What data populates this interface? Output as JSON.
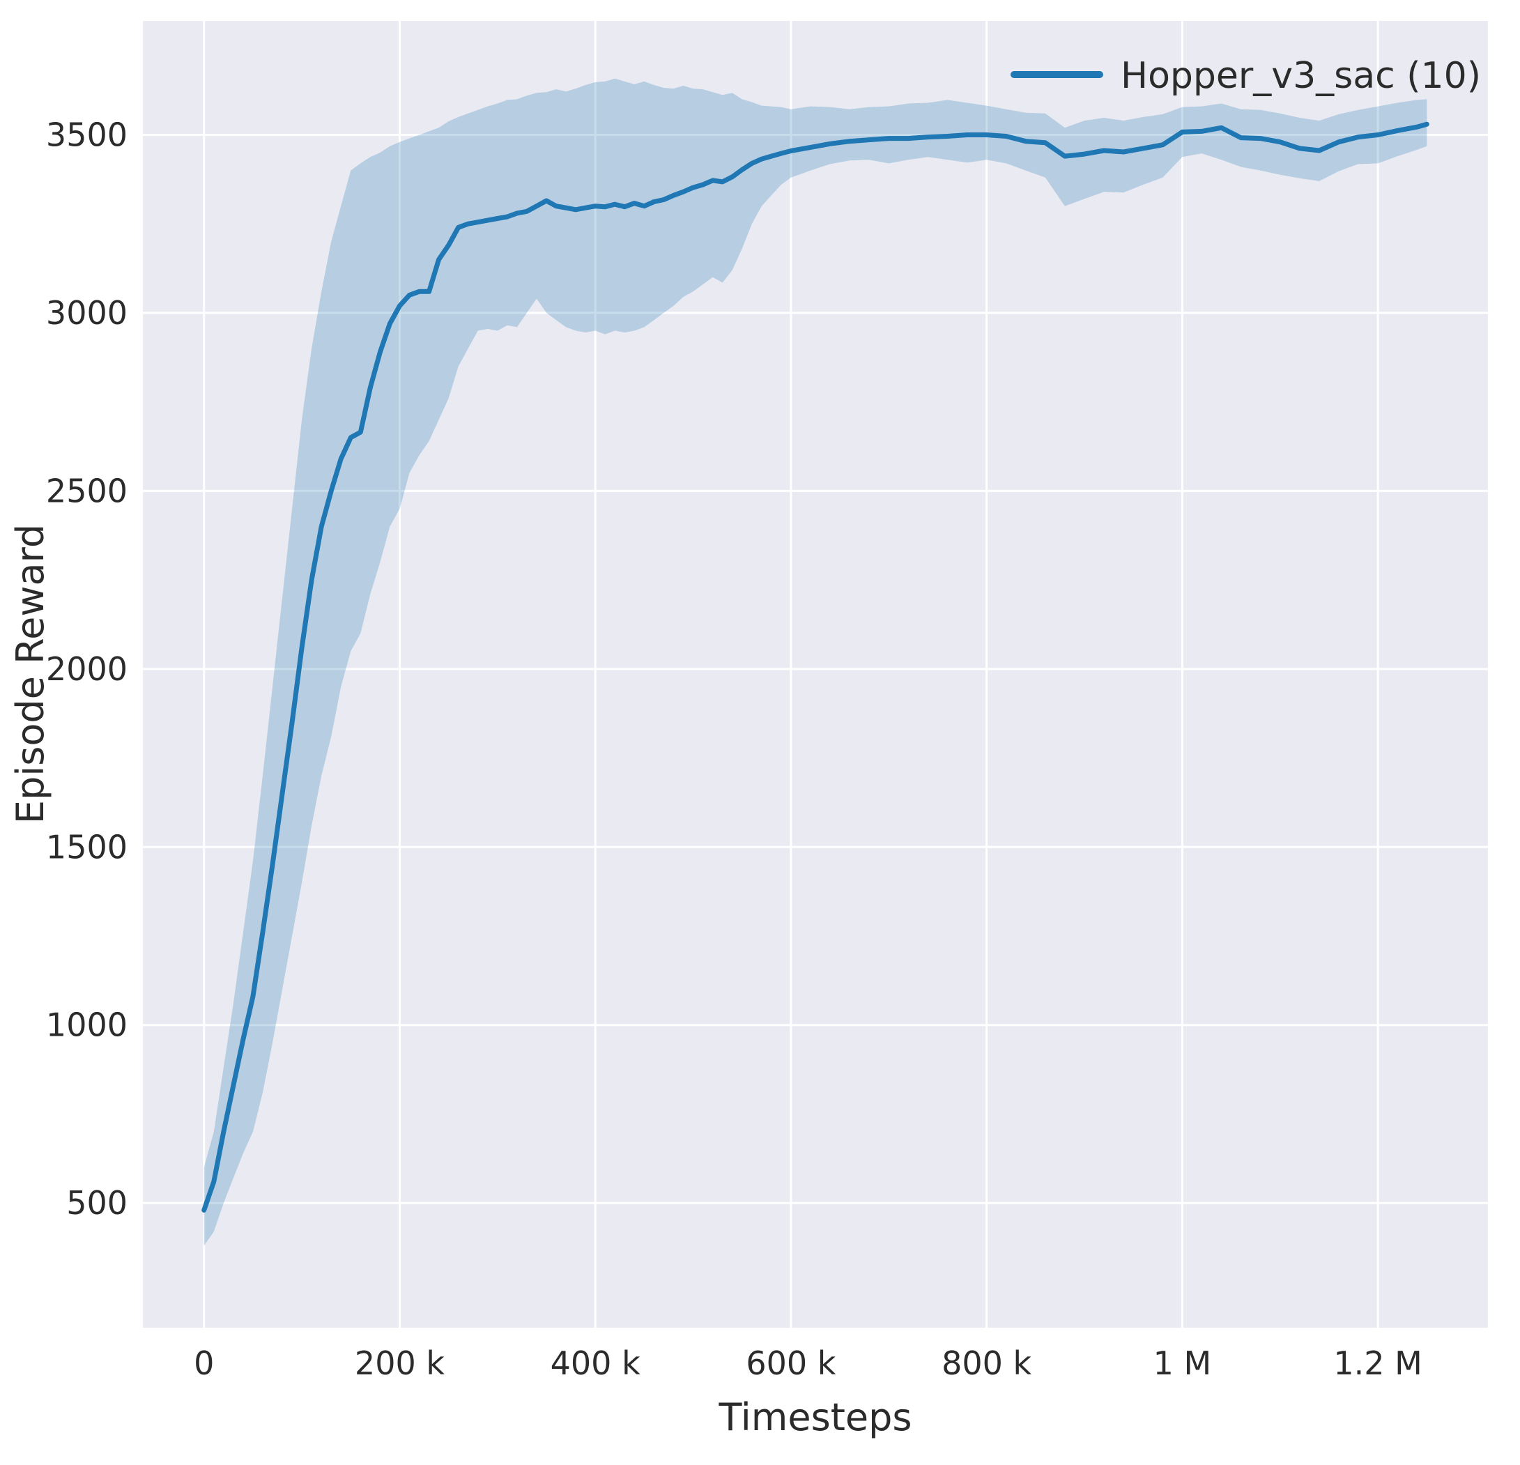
{
  "chart_data": {
    "type": "line",
    "title": "",
    "xlabel": "Timesteps",
    "ylabel": "Episode Reward",
    "x_unit": "timesteps (values stored in thousands)",
    "legend": [
      {
        "label": "Hopper_v3_sac (10)",
        "color": "#1f77b4"
      }
    ],
    "legend_position": "upper right",
    "grid": true,
    "xlim": [
      -62.5,
      1312.5
    ],
    "ylim": [
      150,
      3820
    ],
    "x_ticks": {
      "values": [
        0,
        200,
        400,
        600,
        800,
        1000,
        1200
      ],
      "labels": [
        "0",
        "200 k",
        "400 k",
        "600 k",
        "800 k",
        "1 M",
        "1.2 M"
      ]
    },
    "y_ticks": {
      "values": [
        500,
        1000,
        1500,
        2000,
        2500,
        3000,
        3500
      ],
      "labels": [
        "500",
        "1000",
        "1500",
        "2000",
        "2500",
        "3000",
        "3500"
      ]
    },
    "style": {
      "plot_bg": "#eaeaf2",
      "grid_color": "#ffffff",
      "line_color": "#1f77b4",
      "band_color": "#1f77b4",
      "band_opacity": 0.25
    },
    "series": [
      {
        "name": "Hopper_v3_sac (10)",
        "color": "#1f77b4",
        "x": [
          0,
          10,
          20,
          30,
          40,
          50,
          60,
          70,
          80,
          90,
          100,
          110,
          120,
          130,
          140,
          150,
          160,
          170,
          180,
          190,
          200,
          210,
          220,
          230,
          240,
          250,
          260,
          270,
          280,
          290,
          300,
          310,
          320,
          330,
          340,
          350,
          360,
          370,
          380,
          390,
          400,
          410,
          420,
          430,
          440,
          450,
          460,
          470,
          480,
          490,
          500,
          510,
          520,
          530,
          540,
          550,
          560,
          570,
          580,
          590,
          600,
          620,
          640,
          660,
          680,
          700,
          720,
          740,
          760,
          780,
          800,
          820,
          840,
          860,
          880,
          900,
          920,
          940,
          960,
          980,
          1000,
          1020,
          1040,
          1060,
          1080,
          1100,
          1120,
          1140,
          1160,
          1180,
          1200,
          1220,
          1240,
          1250
        ],
        "mean": [
          480,
          560,
          700,
          830,
          960,
          1080,
          1260,
          1450,
          1650,
          1850,
          2060,
          2250,
          2400,
          2500,
          2590,
          2650,
          2665,
          2790,
          2890,
          2970,
          3020,
          3050,
          3060,
          3060,
          3150,
          3190,
          3240,
          3250,
          3255,
          3260,
          3265,
          3270,
          3280,
          3285,
          3300,
          3315,
          3300,
          3295,
          3290,
          3295,
          3300,
          3298,
          3305,
          3298,
          3308,
          3300,
          3312,
          3318,
          3330,
          3340,
          3352,
          3360,
          3372,
          3368,
          3382,
          3402,
          3420,
          3432,
          3440,
          3448,
          3455,
          3465,
          3475,
          3482,
          3486,
          3490,
          3490,
          3494,
          3496,
          3500,
          3500,
          3496,
          3482,
          3478,
          3440,
          3446,
          3456,
          3452,
          3462,
          3472,
          3508,
          3510,
          3520,
          3492,
          3490,
          3480,
          3462,
          3456,
          3480,
          3494,
          3500,
          3512,
          3522,
          3530
        ],
        "lower": [
          380,
          420,
          500,
          570,
          640,
          700,
          810,
          950,
          1100,
          1250,
          1400,
          1560,
          1700,
          1810,
          1950,
          2050,
          2100,
          2210,
          2300,
          2400,
          2450,
          2550,
          2600,
          2640,
          2700,
          2760,
          2850,
          2900,
          2950,
          2955,
          2950,
          2965,
          2960,
          3000,
          3040,
          3000,
          2980,
          2960,
          2950,
          2945,
          2950,
          2940,
          2950,
          2945,
          2950,
          2960,
          2980,
          3000,
          3020,
          3045,
          3060,
          3080,
          3100,
          3085,
          3120,
          3180,
          3250,
          3300,
          3330,
          3360,
          3380,
          3400,
          3418,
          3428,
          3430,
          3420,
          3430,
          3438,
          3430,
          3422,
          3430,
          3420,
          3400,
          3380,
          3300,
          3320,
          3340,
          3338,
          3360,
          3380,
          3438,
          3448,
          3430,
          3410,
          3400,
          3388,
          3378,
          3370,
          3398,
          3418,
          3420,
          3440,
          3458,
          3468
        ],
        "upper": [
          600,
          700,
          880,
          1060,
          1260,
          1460,
          1700,
          1950,
          2200,
          2450,
          2700,
          2900,
          3060,
          3200,
          3300,
          3400,
          3420,
          3438,
          3450,
          3468,
          3480,
          3490,
          3500,
          3510,
          3520,
          3538,
          3550,
          3560,
          3570,
          3580,
          3588,
          3598,
          3600,
          3610,
          3618,
          3620,
          3628,
          3622,
          3630,
          3640,
          3648,
          3650,
          3658,
          3650,
          3642,
          3650,
          3640,
          3632,
          3630,
          3638,
          3630,
          3628,
          3620,
          3612,
          3618,
          3600,
          3592,
          3582,
          3580,
          3578,
          3572,
          3580,
          3578,
          3572,
          3578,
          3580,
          3588,
          3590,
          3598,
          3590,
          3582,
          3572,
          3562,
          3560,
          3520,
          3540,
          3548,
          3540,
          3550,
          3558,
          3578,
          3580,
          3588,
          3572,
          3570,
          3560,
          3548,
          3540,
          3558,
          3570,
          3580,
          3590,
          3598,
          3600
        ]
      }
    ]
  }
}
